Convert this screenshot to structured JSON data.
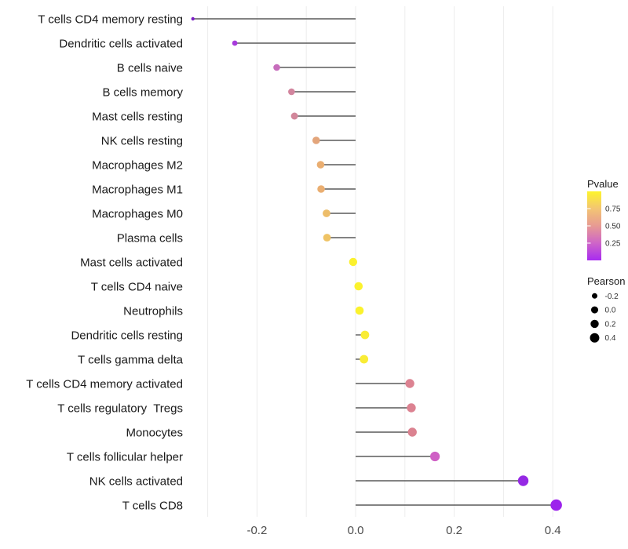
{
  "chart_data": {
    "type": "lollipop",
    "title": "",
    "xlabel": "",
    "ylabel": "",
    "grid": true,
    "background": "#ffffff",
    "gridline_color": "#ececec",
    "stem_color": "#5a5a5a",
    "label_color": "#1a1a1a",
    "axis_tick_color": "#4d4d4d",
    "xlim": [
      -0.355,
      0.44
    ],
    "gridlines": [
      -0.3,
      -0.2,
      -0.1,
      0.0,
      0.1,
      0.2,
      0.3,
      0.4
    ],
    "x_ticks": [
      {
        "value": -0.2,
        "label": "-0.2"
      },
      {
        "value": 0.0,
        "label": "0.0"
      },
      {
        "value": 0.2,
        "label": "0.2"
      },
      {
        "value": 0.4,
        "label": "0.4"
      }
    ],
    "points": [
      {
        "category": "T cells CD4 memory resting",
        "pearson": -0.33,
        "color": "#7a1fc4",
        "radius": 2.2
      },
      {
        "category": "Dendritic cells activated",
        "pearson": -0.245,
        "color": "#a73bdb",
        "radius": 3.4
      },
      {
        "category": "B cells naive",
        "pearson": -0.16,
        "color": "#c76dbc",
        "radius": 4.3
      },
      {
        "category": "B cells memory",
        "pearson": -0.13,
        "color": "#d2859e",
        "radius": 4.3
      },
      {
        "category": "Mast cells resting",
        "pearson": -0.124,
        "color": "#d2879b",
        "radius": 4.5
      },
      {
        "category": "NK cells resting",
        "pearson": -0.08,
        "color": "#e3a57b",
        "radius": 4.8
      },
      {
        "category": "Macrophages M2",
        "pearson": -0.071,
        "color": "#eaae71",
        "radius": 4.8
      },
      {
        "category": "Macrophages M1",
        "pearson": -0.07,
        "color": "#eaae71",
        "radius": 4.8
      },
      {
        "category": "Macrophages M0",
        "pearson": -0.059,
        "color": "#edbd6a",
        "radius": 4.9
      },
      {
        "category": "Plasma cells",
        "pearson": -0.058,
        "color": "#efc365",
        "radius": 4.9
      },
      {
        "category": "Mast cells activated",
        "pearson": -0.005,
        "color": "#fbf12e",
        "radius": 5.2
      },
      {
        "category": "T cells CD4 naive",
        "pearson": 0.006,
        "color": "#fbf22d",
        "radius": 5.3
      },
      {
        "category": "Neutrophils",
        "pearson": 0.008,
        "color": "#fbf22d",
        "radius": 5.3
      },
      {
        "category": "Dendritic cells resting",
        "pearson": 0.019,
        "color": "#f9ec35",
        "radius": 5.4
      },
      {
        "category": "T cells gamma delta",
        "pearson": 0.017,
        "color": "#f9ec35",
        "radius": 5.4
      },
      {
        "category": "T cells CD4 memory activated",
        "pearson": 0.11,
        "color": "#dc8291",
        "radius": 5.7
      },
      {
        "category": "T cells regulatory  Tregs",
        "pearson": 0.113,
        "color": "#dc8291",
        "radius": 5.7
      },
      {
        "category": "Monocytes",
        "pearson": 0.115,
        "color": "#db8290",
        "radius": 5.7
      },
      {
        "category": "T cells follicular helper",
        "pearson": 0.161,
        "color": "#cf60c5",
        "radius": 6.1
      },
      {
        "category": "NK cells activated",
        "pearson": 0.34,
        "color": "#9529e4",
        "radius": 6.7
      },
      {
        "category": "T cells CD8",
        "pearson": 0.407,
        "color": "#9c23ec",
        "radius": 7.3
      }
    ],
    "legend_pvalue": {
      "title": "Pvalue",
      "range": [
        0,
        1
      ],
      "tick_labels": [
        "0.75",
        "0.50",
        "0.25"
      ],
      "tick_values": [
        0.75,
        0.5,
        0.25
      ],
      "gradient": [
        {
          "offset": 0.0,
          "color": "#fdf42c"
        },
        {
          "offset": 0.25,
          "color": "#f3c573"
        },
        {
          "offset": 0.5,
          "color": "#e79a93"
        },
        {
          "offset": 0.75,
          "color": "#ce65c8"
        },
        {
          "offset": 1.0,
          "color": "#a82bf0"
        }
      ]
    },
    "legend_pearson": {
      "title": "Pearson",
      "dot_color": "#000000",
      "items": [
        {
          "label": "-0.2",
          "radius": 3.5
        },
        {
          "label": "0.0",
          "radius": 4.5
        },
        {
          "label": "0.2",
          "radius": 5.2
        },
        {
          "label": "0.4",
          "radius": 6.0
        }
      ]
    }
  }
}
